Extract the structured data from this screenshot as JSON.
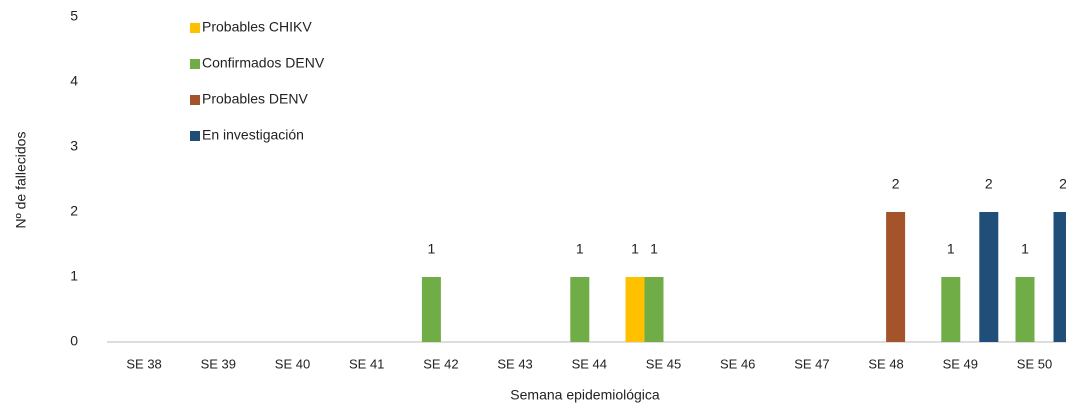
{
  "chart_data": {
    "type": "bar",
    "x_label": "Semana epidemiológica",
    "y_label": "Nº de fallecidos",
    "categories": [
      "SE 38",
      "SE 39",
      "SE 40",
      "SE 41",
      "SE 42",
      "SE 43",
      "SE 44",
      "SE 45",
      "SE 46",
      "SE 47",
      "SE 48",
      "SE 49",
      "SE 50"
    ],
    "series": [
      {
        "name": "Probables CHIKV",
        "color": "#ffc000",
        "values": [
          0,
          0,
          0,
          0,
          0,
          0,
          0,
          1,
          0,
          0,
          0,
          0,
          0
        ]
      },
      {
        "name": "Confirmados DENV",
        "color": "#70ad47",
        "values": [
          0,
          0,
          0,
          0,
          1,
          0,
          1,
          1,
          0,
          0,
          0,
          1,
          1
        ]
      },
      {
        "name": "Probables DENV",
        "color": "#a5532a",
        "values": [
          0,
          0,
          0,
          0,
          0,
          0,
          0,
          0,
          0,
          0,
          2,
          0,
          0
        ]
      },
      {
        "name": "En investigación",
        "color": "#1f4e79",
        "values": [
          0,
          0,
          0,
          0,
          0,
          0,
          0,
          0,
          0,
          0,
          0,
          2,
          2
        ]
      }
    ],
    "ylim": [
      0,
      5
    ],
    "yticks": [
      0,
      1,
      2,
      3,
      4,
      5
    ],
    "grid": false,
    "legend": "top-left"
  }
}
